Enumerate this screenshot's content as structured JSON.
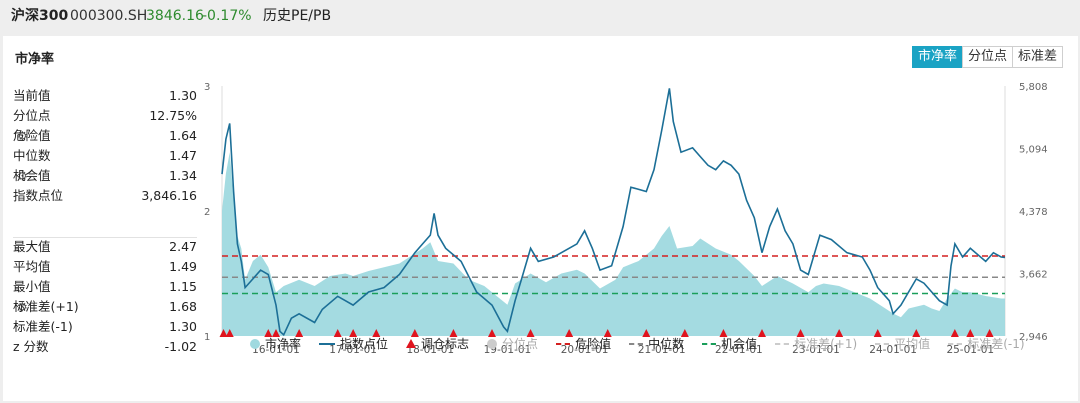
{
  "header": {
    "index_name": "沪深300",
    "code": "000300.SH",
    "price": "3846.16",
    "change": "-0.17%",
    "link": "历史PE/PB"
  },
  "panel": {
    "title": "市净率",
    "tabs": [
      {
        "label": "市净率",
        "active": true
      },
      {
        "label": "分位点",
        "active": false
      },
      {
        "label": "标准差",
        "active": false
      }
    ]
  },
  "stats_top": [
    {
      "label": "当前值",
      "value": "1.30",
      "gear": false
    },
    {
      "label": "分位点",
      "value": "12.75%",
      "gear": false
    },
    {
      "label": "危险值",
      "value": "1.64",
      "gear": true
    },
    {
      "label": "中位数",
      "value": "1.47",
      "gear": false
    },
    {
      "label": "机会值",
      "value": "1.34",
      "gear": true
    },
    {
      "label": "指数点位",
      "value": "3,846.16",
      "gear": false
    }
  ],
  "stats_bottom": [
    {
      "label": "最大值",
      "value": "2.47",
      "gear": false
    },
    {
      "label": "平均值",
      "value": "1.49",
      "gear": false
    },
    {
      "label": "最小值",
      "value": "1.15",
      "gear": false
    },
    {
      "label": "标准差(+1)",
      "value": "1.68",
      "gear": true
    },
    {
      "label": "标准差(-1)",
      "value": "1.30",
      "gear": false
    },
    {
      "label": "z 分数",
      "value": "-1.02",
      "gear": false
    }
  ],
  "colors": {
    "area": "#9fd9df",
    "index_line": "#1c6f97",
    "marker": "#e0141e",
    "danger": "#d42020",
    "median": "#888888",
    "opportunity": "#1a9e5a",
    "accent": "#1aa3c4",
    "up": "#2e8b2e"
  },
  "chart_data": {
    "type": "area",
    "x_ticks": [
      "16-01-01",
      "17-01-01",
      "18-01-01",
      "19-01-01",
      "20-01-01",
      "21-01-01",
      "22-01-01",
      "23-01-01",
      "24-01-01",
      "25-01-01"
    ],
    "y_left_ticks": [
      "3",
      "2",
      "1"
    ],
    "y_left_range": [
      1,
      3
    ],
    "y_right_ticks": [
      "5,808",
      "5,094",
      "4,378",
      "3,662",
      "2,946"
    ],
    "y_right_range": [
      2946,
      5808
    ],
    "x_range": [
      2015.3,
      2025.45
    ],
    "series": [
      {
        "name": "市净率",
        "kind": "area",
        "axis": "left",
        "points": [
          [
            2015.3,
            2.0
          ],
          [
            2015.35,
            2.3
          ],
          [
            2015.4,
            2.47
          ],
          [
            2015.45,
            2.1
          ],
          [
            2015.5,
            1.8
          ],
          [
            2015.55,
            1.7
          ],
          [
            2015.6,
            1.45
          ],
          [
            2015.7,
            1.6
          ],
          [
            2015.8,
            1.65
          ],
          [
            2015.9,
            1.55
          ],
          [
            2016.0,
            1.35
          ],
          [
            2016.1,
            1.4
          ],
          [
            2016.3,
            1.45
          ],
          [
            2016.5,
            1.4
          ],
          [
            2016.7,
            1.48
          ],
          [
            2016.9,
            1.5
          ],
          [
            2017.0,
            1.48
          ],
          [
            2017.2,
            1.52
          ],
          [
            2017.4,
            1.55
          ],
          [
            2017.6,
            1.58
          ],
          [
            2017.8,
            1.66
          ],
          [
            2017.9,
            1.7
          ],
          [
            2018.0,
            1.75
          ],
          [
            2018.1,
            1.6
          ],
          [
            2018.3,
            1.58
          ],
          [
            2018.5,
            1.45
          ],
          [
            2018.7,
            1.4
          ],
          [
            2018.9,
            1.3
          ],
          [
            2019.0,
            1.25
          ],
          [
            2019.1,
            1.42
          ],
          [
            2019.3,
            1.5
          ],
          [
            2019.5,
            1.43
          ],
          [
            2019.7,
            1.5
          ],
          [
            2019.9,
            1.53
          ],
          [
            2020.0,
            1.5
          ],
          [
            2020.2,
            1.38
          ],
          [
            2020.4,
            1.45
          ],
          [
            2020.5,
            1.55
          ],
          [
            2020.7,
            1.6
          ],
          [
            2020.9,
            1.7
          ],
          [
            2021.0,
            1.8
          ],
          [
            2021.1,
            1.88
          ],
          [
            2021.2,
            1.7
          ],
          [
            2021.4,
            1.72
          ],
          [
            2021.5,
            1.78
          ],
          [
            2021.7,
            1.7
          ],
          [
            2021.9,
            1.65
          ],
          [
            2022.0,
            1.6
          ],
          [
            2022.2,
            1.48
          ],
          [
            2022.3,
            1.4
          ],
          [
            2022.5,
            1.48
          ],
          [
            2022.7,
            1.42
          ],
          [
            2022.9,
            1.35
          ],
          [
            2023.0,
            1.4
          ],
          [
            2023.1,
            1.42
          ],
          [
            2023.3,
            1.4
          ],
          [
            2023.5,
            1.35
          ],
          [
            2023.7,
            1.3
          ],
          [
            2023.9,
            1.22
          ],
          [
            2024.0,
            1.18
          ],
          [
            2024.1,
            1.15
          ],
          [
            2024.2,
            1.22
          ],
          [
            2024.4,
            1.25
          ],
          [
            2024.5,
            1.22
          ],
          [
            2024.6,
            1.2
          ],
          [
            2024.7,
            1.3
          ],
          [
            2024.8,
            1.38
          ],
          [
            2024.9,
            1.35
          ],
          [
            2025.0,
            1.35
          ],
          [
            2025.2,
            1.32
          ],
          [
            2025.4,
            1.3
          ],
          [
            2025.45,
            1.3
          ]
        ]
      },
      {
        "name": "指数点位",
        "kind": "line",
        "axis": "right",
        "points": [
          [
            2015.3,
            4800
          ],
          [
            2015.35,
            5200
          ],
          [
            2015.4,
            5380
          ],
          [
            2015.45,
            4600
          ],
          [
            2015.5,
            4000
          ],
          [
            2015.55,
            3800
          ],
          [
            2015.6,
            3500
          ],
          [
            2015.7,
            3600
          ],
          [
            2015.8,
            3700
          ],
          [
            2015.9,
            3650
          ],
          [
            2016.0,
            3300
          ],
          [
            2016.05,
            3000
          ],
          [
            2016.1,
            2960
          ],
          [
            2016.2,
            3150
          ],
          [
            2016.3,
            3200
          ],
          [
            2016.5,
            3100
          ],
          [
            2016.6,
            3250
          ],
          [
            2016.8,
            3400
          ],
          [
            2016.9,
            3350
          ],
          [
            2017.0,
            3300
          ],
          [
            2017.2,
            3450
          ],
          [
            2017.4,
            3500
          ],
          [
            2017.6,
            3650
          ],
          [
            2017.8,
            3900
          ],
          [
            2017.9,
            4000
          ],
          [
            2018.0,
            4100
          ],
          [
            2018.05,
            4350
          ],
          [
            2018.1,
            4100
          ],
          [
            2018.2,
            3950
          ],
          [
            2018.4,
            3800
          ],
          [
            2018.6,
            3450
          ],
          [
            2018.8,
            3300
          ],
          [
            2018.95,
            3050
          ],
          [
            2019.0,
            3000
          ],
          [
            2019.1,
            3350
          ],
          [
            2019.2,
            3650
          ],
          [
            2019.3,
            3950
          ],
          [
            2019.4,
            3800
          ],
          [
            2019.6,
            3850
          ],
          [
            2019.8,
            3950
          ],
          [
            2019.9,
            4000
          ],
          [
            2020.0,
            4150
          ],
          [
            2020.1,
            3950
          ],
          [
            2020.2,
            3700
          ],
          [
            2020.35,
            3750
          ],
          [
            2020.5,
            4200
          ],
          [
            2020.6,
            4650
          ],
          [
            2020.8,
            4600
          ],
          [
            2020.9,
            4850
          ],
          [
            2021.0,
            5300
          ],
          [
            2021.1,
            5780
          ],
          [
            2021.15,
            5400
          ],
          [
            2021.25,
            5050
          ],
          [
            2021.4,
            5100
          ],
          [
            2021.5,
            5000
          ],
          [
            2021.6,
            4900
          ],
          [
            2021.7,
            4850
          ],
          [
            2021.8,
            4950
          ],
          [
            2021.9,
            4900
          ],
          [
            2022.0,
            4800
          ],
          [
            2022.1,
            4500
          ],
          [
            2022.2,
            4300
          ],
          [
            2022.3,
            3900
          ],
          [
            2022.4,
            4200
          ],
          [
            2022.5,
            4400
          ],
          [
            2022.6,
            4150
          ],
          [
            2022.7,
            4000
          ],
          [
            2022.8,
            3700
          ],
          [
            2022.9,
            3650
          ],
          [
            2023.0,
            3950
          ],
          [
            2023.05,
            4100
          ],
          [
            2023.2,
            4050
          ],
          [
            2023.4,
            3900
          ],
          [
            2023.6,
            3850
          ],
          [
            2023.7,
            3700
          ],
          [
            2023.8,
            3500
          ],
          [
            2023.95,
            3350
          ],
          [
            2024.0,
            3200
          ],
          [
            2024.1,
            3300
          ],
          [
            2024.2,
            3450
          ],
          [
            2024.3,
            3600
          ],
          [
            2024.4,
            3550
          ],
          [
            2024.5,
            3450
          ],
          [
            2024.6,
            3350
          ],
          [
            2024.7,
            3300
          ],
          [
            2024.75,
            3750
          ],
          [
            2024.8,
            4000
          ],
          [
            2024.9,
            3850
          ],
          [
            2025.0,
            3950
          ],
          [
            2025.2,
            3800
          ],
          [
            2025.3,
            3900
          ],
          [
            2025.4,
            3850
          ],
          [
            2025.45,
            3846
          ]
        ]
      }
    ],
    "hlines": [
      {
        "name": "危险值",
        "value": 1.64,
        "style": "dashed"
      },
      {
        "name": "中位数",
        "value": 1.47,
        "style": "dashed"
      },
      {
        "name": "机会值",
        "value": 1.34,
        "style": "dashed"
      }
    ],
    "markers": {
      "name": "调仓标志",
      "x": [
        2015.32,
        2015.4,
        2015.9,
        2016.0,
        2016.3,
        2016.8,
        2017.0,
        2017.3,
        2017.8,
        2018.3,
        2018.8,
        2019.3,
        2019.8,
        2020.3,
        2020.8,
        2021.3,
        2021.8,
        2022.3,
        2022.8,
        2023.3,
        2023.8,
        2024.3,
        2024.8,
        2025.0,
        2025.25
      ]
    },
    "legend": [
      {
        "label": "市净率",
        "type": "dot",
        "enabled": true
      },
      {
        "label": "指数点位",
        "type": "line",
        "enabled": true
      },
      {
        "label": "调仓标志",
        "type": "triangle",
        "enabled": true
      },
      {
        "label": "分位点",
        "type": "dot",
        "enabled": false
      },
      {
        "label": "危险值",
        "type": "dash",
        "enabled": true
      },
      {
        "label": "中位数",
        "type": "dash",
        "enabled": true
      },
      {
        "label": "机会值",
        "type": "dash",
        "enabled": true
      },
      {
        "label": "标准差(+1)",
        "type": "dash",
        "enabled": false
      },
      {
        "label": "平均值",
        "type": "dash",
        "enabled": false
      },
      {
        "label": "标准差(-1)",
        "type": "dash",
        "enabled": false
      }
    ],
    "legend_position": "bottom"
  }
}
